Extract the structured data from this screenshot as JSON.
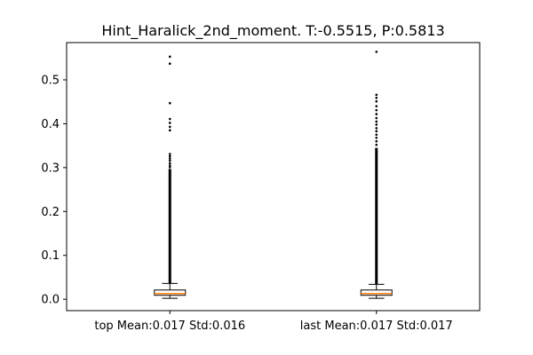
{
  "chart_data": {
    "type": "box",
    "title": "Hint_Haralick_2nd_moment. T:-0.5515, P:0.5813",
    "xlabel": "",
    "ylabel": "",
    "ylim": [
      -0.026,
      0.585
    ],
    "yticks": [
      0.0,
      0.1,
      0.2,
      0.3,
      0.4,
      0.5
    ],
    "ytick_labels": [
      "0.0",
      "0.1",
      "0.2",
      "0.3",
      "0.4",
      "0.5"
    ],
    "grid": false,
    "boxes": [
      {
        "label": "top Mean:0.017 Std:0.016",
        "whisker_low": 0.002,
        "q1": 0.009,
        "median": 0.013,
        "q3": 0.021,
        "whisker_high": 0.036,
        "outlier_band": [
          0.036,
          0.297
        ],
        "outliers": [
          0.301,
          0.305,
          0.31,
          0.316,
          0.321,
          0.326,
          0.331,
          0.385,
          0.393,
          0.402,
          0.411,
          0.447,
          0.537,
          0.553
        ]
      },
      {
        "label": "last Mean:0.017 Std:0.017",
        "whisker_low": 0.002,
        "q1": 0.009,
        "median": 0.013,
        "q3": 0.021,
        "whisker_high": 0.034,
        "outlier_band": [
          0.034,
          0.345
        ],
        "outliers": [
          0.352,
          0.36,
          0.368,
          0.375,
          0.383,
          0.39,
          0.398,
          0.405,
          0.413,
          0.422,
          0.431,
          0.44,
          0.451,
          0.459,
          0.466,
          0.564
        ]
      }
    ],
    "colors": {
      "box_edge": "#000000",
      "box_fill": "#ffffff",
      "median": "#ff7f0e",
      "flier": "#000000"
    }
  }
}
